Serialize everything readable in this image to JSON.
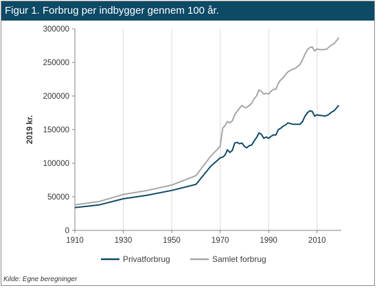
{
  "figure": {
    "title": "Figur 1. Forbrug per indbygger gennem 100 år.",
    "source": "Kilde: Egne beregninger"
  },
  "chart_data": {
    "type": "line",
    "title": "Figur 1. Forbrug per indbygger gennem 100 år.",
    "ylabel": "2019 kr.",
    "xlabel": "",
    "xlim": [
      1910,
      2020
    ],
    "ylim": [
      0,
      300000
    ],
    "xticks": [
      1910,
      1930,
      1950,
      1970,
      1990,
      2010
    ],
    "yticks": [
      0,
      50000,
      100000,
      150000,
      200000,
      250000,
      300000
    ],
    "ytick_labels": [
      "0",
      "50000",
      "100000",
      "150000",
      "200000",
      "250000",
      "300000"
    ],
    "grid": "vertical",
    "legend": "bottom",
    "series": [
      {
        "name": "Privatforbrug",
        "color": "#0d4a66",
        "points": [
          [
            1910,
            34000
          ],
          [
            1920,
            38000
          ],
          [
            1930,
            47000
          ],
          [
            1940,
            52500
          ],
          [
            1950,
            59500
          ],
          [
            1960,
            68500
          ],
          [
            1966,
            95000
          ],
          [
            1970,
            108000
          ],
          [
            1971,
            109000
          ],
          [
            1972,
            112000
          ],
          [
            1973,
            120000
          ],
          [
            1974,
            116000
          ],
          [
            1975,
            119000
          ],
          [
            1976,
            130000
          ],
          [
            1977,
            131000
          ],
          [
            1978,
            129000
          ],
          [
            1979,
            130000
          ],
          [
            1980,
            125000
          ],
          [
            1981,
            123000
          ],
          [
            1982,
            126000
          ],
          [
            1983,
            127000
          ],
          [
            1984,
            133000
          ],
          [
            1985,
            138000
          ],
          [
            1986,
            145000
          ],
          [
            1987,
            143000
          ],
          [
            1988,
            137000
          ],
          [
            1989,
            139000
          ],
          [
            1990,
            137000
          ],
          [
            1991,
            140000
          ],
          [
            1992,
            142000
          ],
          [
            1993,
            142000
          ],
          [
            1994,
            150000
          ],
          [
            1995,
            152000
          ],
          [
            1996,
            155000
          ],
          [
            1997,
            157000
          ],
          [
            1998,
            160000
          ],
          [
            1999,
            159000
          ],
          [
            2000,
            158000
          ],
          [
            2001,
            158000
          ],
          [
            2002,
            158000
          ],
          [
            2003,
            158000
          ],
          [
            2004,
            162000
          ],
          [
            2005,
            170000
          ],
          [
            2006,
            175000
          ],
          [
            2007,
            178000
          ],
          [
            2008,
            177000
          ],
          [
            2009,
            170000
          ],
          [
            2010,
            172000
          ],
          [
            2011,
            171000
          ],
          [
            2012,
            171000
          ],
          [
            2013,
            170000
          ],
          [
            2014,
            171000
          ],
          [
            2015,
            173000
          ],
          [
            2016,
            176000
          ],
          [
            2017,
            178000
          ],
          [
            2018,
            182000
          ],
          [
            2019,
            186000
          ]
        ]
      },
      {
        "name": "Samlet forbrug",
        "color": "#a6a6a6",
        "points": [
          [
            1910,
            38000
          ],
          [
            1920,
            43000
          ],
          [
            1930,
            53500
          ],
          [
            1940,
            59500
          ],
          [
            1950,
            67500
          ],
          [
            1960,
            81500
          ],
          [
            1966,
            110000
          ],
          [
            1970,
            125000
          ],
          [
            1971,
            152000
          ],
          [
            1972,
            156000
          ],
          [
            1973,
            162000
          ],
          [
            1974,
            160000
          ],
          [
            1975,
            163000
          ],
          [
            1976,
            172000
          ],
          [
            1977,
            177000
          ],
          [
            1978,
            182000
          ],
          [
            1979,
            186000
          ],
          [
            1980,
            183000
          ],
          [
            1981,
            183000
          ],
          [
            1982,
            186000
          ],
          [
            1983,
            189000
          ],
          [
            1984,
            196000
          ],
          [
            1985,
            200000
          ],
          [
            1986,
            209000
          ],
          [
            1987,
            207000
          ],
          [
            1988,
            203000
          ],
          [
            1989,
            204000
          ],
          [
            1990,
            203000
          ],
          [
            1991,
            207000
          ],
          [
            1992,
            210000
          ],
          [
            1993,
            210000
          ],
          [
            1994,
            219000
          ],
          [
            1995,
            224000
          ],
          [
            1996,
            227000
          ],
          [
            1997,
            232000
          ],
          [
            1998,
            236000
          ],
          [
            1999,
            238000
          ],
          [
            2000,
            240000
          ],
          [
            2001,
            241000
          ],
          [
            2002,
            244000
          ],
          [
            2003,
            247000
          ],
          [
            2004,
            254000
          ],
          [
            2005,
            262000
          ],
          [
            2006,
            269000
          ],
          [
            2007,
            272000
          ],
          [
            2008,
            273000
          ],
          [
            2009,
            267000
          ],
          [
            2010,
            270000
          ],
          [
            2011,
            269000
          ],
          [
            2012,
            269000
          ],
          [
            2013,
            269000
          ],
          [
            2014,
            270000
          ],
          [
            2015,
            273000
          ],
          [
            2016,
            276000
          ],
          [
            2017,
            278000
          ],
          [
            2018,
            282000
          ],
          [
            2019,
            287000
          ]
        ]
      }
    ]
  }
}
